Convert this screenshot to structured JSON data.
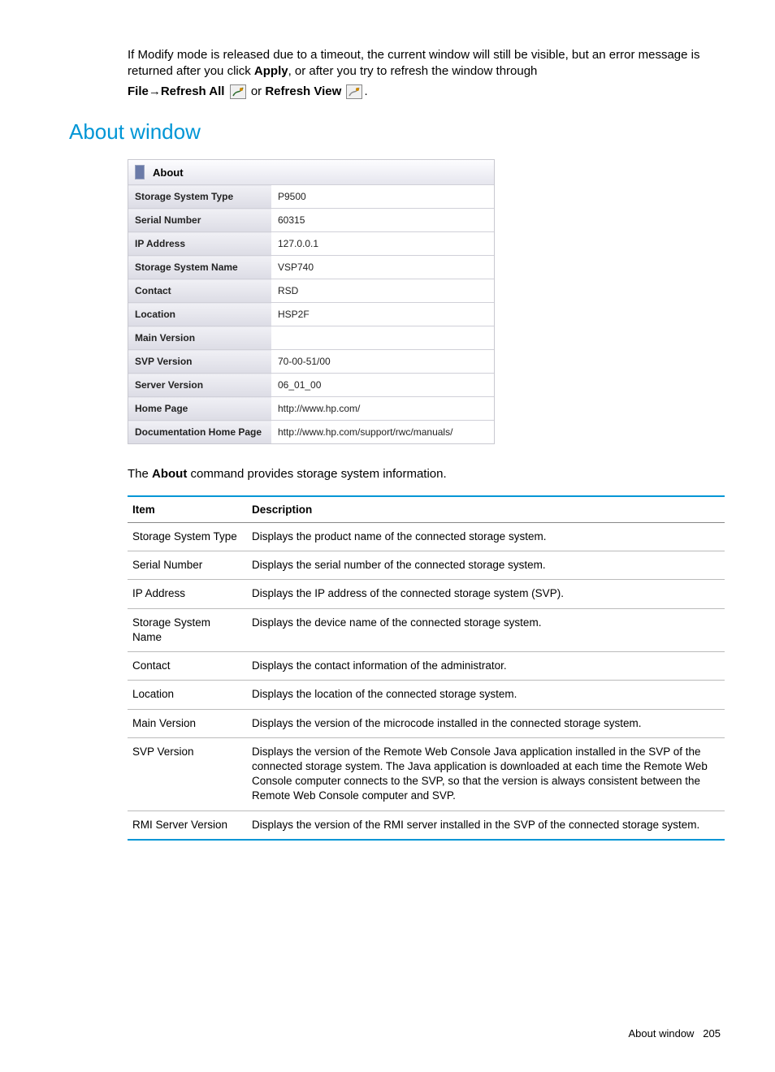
{
  "intro": {
    "para1_a": "If Modify mode is released due to a timeout, the current window will still be visible, but an error message is returned after you click ",
    "apply": "Apply",
    "para1_b": ", or after you try to refresh the window through",
    "file": "File",
    "arrow": "→",
    "refresh_all": "Refresh All",
    "or": " or ",
    "refresh_view": "Refresh View",
    "period": "."
  },
  "heading": "About window",
  "about_panel": {
    "title": "About",
    "rows": [
      {
        "label": "Storage System Type",
        "value": "P9500"
      },
      {
        "label": "Serial Number",
        "value": "60315"
      },
      {
        "label": "IP Address",
        "value": "127.0.0.1"
      },
      {
        "label": "Storage System Name",
        "value": "VSP740"
      },
      {
        "label": "Contact",
        "value": "RSD"
      },
      {
        "label": "Location",
        "value": "HSP2F"
      },
      {
        "label": "Main Version",
        "value": ""
      },
      {
        "label": "SVP Version",
        "value": "70-00-51/00"
      },
      {
        "label": "Server Version",
        "value": "06_01_00"
      },
      {
        "label": "Home Page",
        "value": "http://www.hp.com/"
      },
      {
        "label": "Documentation Home Page",
        "value": "http://www.hp.com/support/rwc/manuals/"
      }
    ]
  },
  "about_desc_a": "The ",
  "about_desc_bold": "About",
  "about_desc_b": " command provides storage system information.",
  "desc_table": {
    "headers": {
      "item": "Item",
      "description": "Description"
    },
    "rows": [
      {
        "item": "Storage System Type",
        "desc": "Displays the product name of the connected storage system."
      },
      {
        "item": "Serial Number",
        "desc": "Displays the serial number of the connected storage system."
      },
      {
        "item": "IP Address",
        "desc": "Displays the IP address of the connected storage system (SVP)."
      },
      {
        "item": "Storage System Name",
        "desc": "Displays the device name of the connected storage system."
      },
      {
        "item": "Contact",
        "desc": "Displays the contact information of the administrator."
      },
      {
        "item": "Location",
        "desc": "Displays the location of the connected storage system."
      },
      {
        "item": "Main Version",
        "desc": "Displays the version of the microcode installed in the connected storage system."
      },
      {
        "item": "SVP Version",
        "desc": "Displays the version of the Remote Web Console Java application installed in the SVP of the connected storage system. The Java application is downloaded at each time the Remote Web Console computer connects to the SVP, so that the version is always consistent between the Remote Web Console computer and SVP."
      },
      {
        "item": "RMI Server Version",
        "desc": "Displays the version of the RMI server installed in the SVP of the connected storage system."
      }
    ]
  },
  "footer": {
    "label": "About window",
    "page": "205"
  }
}
